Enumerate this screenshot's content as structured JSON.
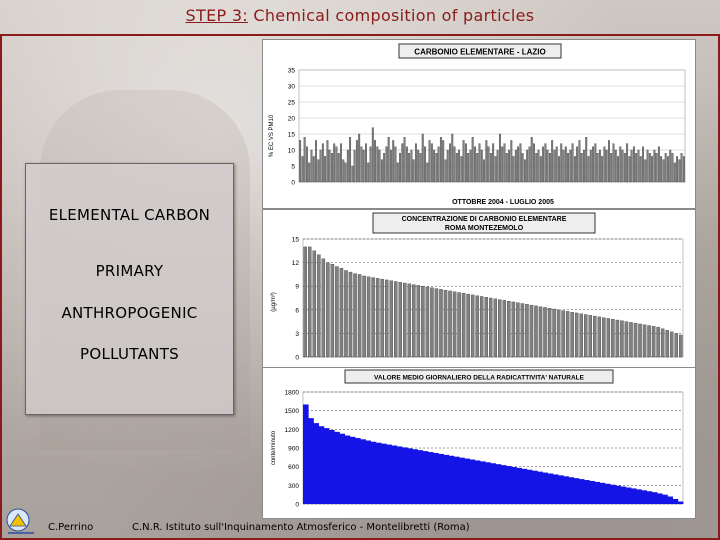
{
  "title": {
    "step": "STEP 3:",
    "rest": "Chemical composition of particles"
  },
  "side_box": {
    "lines": [
      "ELEMENTAL CARBON",
      "PRIMARY",
      "ANTHROPOGENIC",
      "POLLUTANTS"
    ]
  },
  "footer": {
    "author": "C.Perrino",
    "institute": "C.N.R. Istituto sull'Inquinamento Atmosferico - Montelibretti (Roma)"
  },
  "colors": {
    "accent": "#8b1a1a",
    "bar_gray": "#808080",
    "bar_blue": "#1414e6"
  },
  "chart_data": [
    {
      "type": "bar",
      "title": "CARBONIO ELEMENTARE - LAZIO",
      "xlabel": "OTTOBRE 2004 - LUGLIO 2005",
      "ylabel": "% EC VS PM10",
      "ylim": [
        0,
        35
      ],
      "yticks": [
        "0",
        "5",
        "10",
        "15",
        "20",
        "25",
        "30",
        "35"
      ],
      "grid": true,
      "values": [
        13,
        8,
        14,
        11,
        6,
        10,
        8,
        13,
        7,
        10,
        12,
        8,
        13,
        10,
        9,
        12,
        11,
        9,
        12,
        7,
        6,
        10,
        14,
        5,
        10,
        13,
        15,
        11,
        10,
        12,
        6,
        11,
        17,
        13,
        11,
        10,
        7,
        9,
        11,
        14,
        10,
        13,
        11,
        6,
        9,
        12,
        14,
        11,
        9,
        10,
        7,
        12,
        10,
        9,
        15,
        11,
        6,
        13,
        12,
        10,
        9,
        11,
        14,
        13,
        7,
        10,
        12,
        15,
        11,
        9,
        10,
        8,
        13,
        12,
        9,
        10,
        14,
        11,
        9,
        12,
        10,
        7,
        13,
        11,
        9,
        12,
        8,
        10,
        15,
        11,
        12,
        9,
        10,
        13,
        8,
        10,
        11,
        12,
        9,
        7,
        10,
        11,
        14,
        12,
        9,
        10,
        8,
        11,
        12,
        10,
        9,
        13,
        10,
        11,
        8,
        12,
        10,
        11,
        9,
        10,
        12,
        8,
        11,
        13,
        9,
        10,
        14,
        8,
        10,
        11,
        12,
        9,
        10,
        8,
        11,
        10,
        13,
        9,
        12,
        10,
        8,
        11,
        10,
        9,
        12,
        8,
        10,
        11,
        9,
        10,
        8,
        11,
        7,
        10,
        9,
        8,
        10,
        9,
        11,
        8,
        7,
        9,
        8,
        10,
        9,
        6,
        8,
        7,
        9,
        8
      ]
    },
    {
      "type": "bar",
      "title": "CONCENTRAZIONE DI CARBONIO ELEMENTARE ROMA MONTEZEMOLO",
      "ylabel": "(µg/m³)",
      "ylim": [
        0,
        15
      ],
      "yticks": [
        "0",
        "3",
        "6",
        "9",
        "12",
        "15"
      ],
      "grid": true,
      "sorted_descending": true,
      "values": [
        14,
        14,
        13.5,
        13,
        12.5,
        12,
        11.8,
        11.5,
        11.3,
        11,
        10.8,
        10.6,
        10.5,
        10.3,
        10.2,
        10.1,
        10,
        9.9,
        9.8,
        9.7,
        9.6,
        9.5,
        9.4,
        9.3,
        9.2,
        9.1,
        9.0,
        8.9,
        8.8,
        8.7,
        8.6,
        8.5,
        8.4,
        8.3,
        8.2,
        8.1,
        8.0,
        7.9,
        7.8,
        7.7,
        7.6,
        7.5,
        7.4,
        7.3,
        7.2,
        7.1,
        7.0,
        6.9,
        6.8,
        6.7,
        6.6,
        6.5,
        6.4,
        6.3,
        6.2,
        6.1,
        6.0,
        5.9,
        5.8,
        5.7,
        5.6,
        5.5,
        5.4,
        5.3,
        5.2,
        5.1,
        5.0,
        4.9,
        4.8,
        4.7,
        4.6,
        4.5,
        4.4,
        4.3,
        4.2,
        4.1,
        4.0,
        3.9,
        3.8,
        3.6,
        3.4,
        3.2,
        3.0,
        2.8
      ]
    },
    {
      "type": "area",
      "title": "VALORE MEDIO GIORNALIERO DELLA RADICATTIVITA' NATURALE",
      "ylabel": "conte/minuto",
      "ylim": [
        0,
        1800
      ],
      "yticks": [
        "0",
        "300",
        "600",
        "900",
        "1200",
        "1500",
        "1800"
      ],
      "grid": true,
      "sorted_descending": true,
      "values": [
        1600,
        1380,
        1300,
        1250,
        1220,
        1190,
        1160,
        1130,
        1100,
        1080,
        1060,
        1040,
        1020,
        1000,
        985,
        970,
        955,
        940,
        925,
        910,
        895,
        880,
        865,
        850,
        835,
        820,
        805,
        790,
        775,
        760,
        745,
        730,
        715,
        700,
        685,
        670,
        655,
        640,
        625,
        610,
        595,
        580,
        565,
        550,
        535,
        520,
        505,
        490,
        475,
        460,
        445,
        430,
        415,
        400,
        385,
        370,
        355,
        340,
        325,
        310,
        295,
        280,
        265,
        250,
        235,
        220,
        205,
        190,
        170,
        150,
        120,
        80,
        40
      ]
    }
  ]
}
